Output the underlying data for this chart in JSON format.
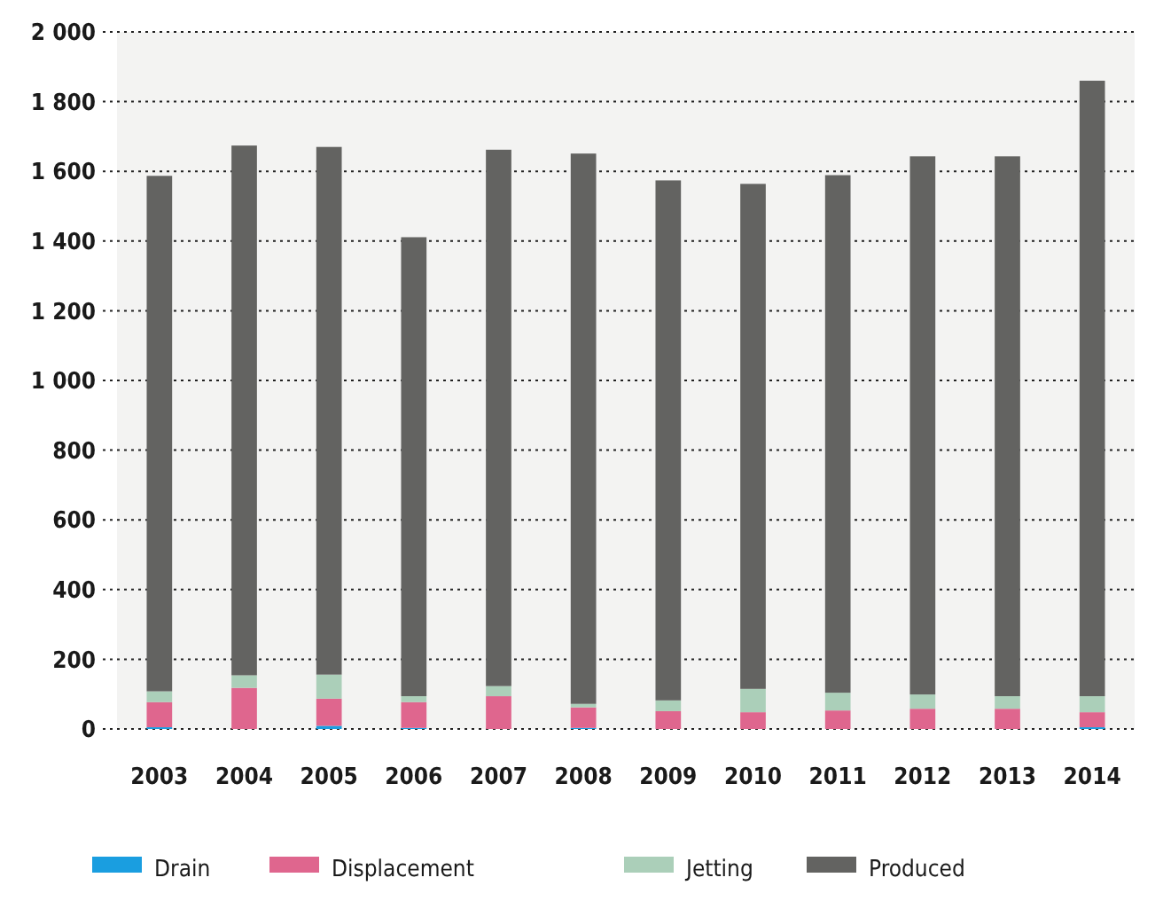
{
  "chart_data": {
    "type": "bar",
    "stacked": true,
    "categories": [
      "2003",
      "2004",
      "2005",
      "2006",
      "2007",
      "2008",
      "2009",
      "2010",
      "2011",
      "2012",
      "2013",
      "2014"
    ],
    "series": [
      {
        "name": "Drain",
        "color": "#1a9ee0",
        "values": [
          5,
          0,
          9,
          3,
          0,
          3,
          0,
          0,
          0,
          0,
          0,
          5
        ]
      },
      {
        "name": "Displacement",
        "color": "#df668e",
        "values": [
          72,
          118,
          78,
          74,
          94,
          59,
          51,
          48,
          53,
          58,
          58,
          43
        ]
      },
      {
        "name": "Jetting",
        "color": "#abcfb9",
        "values": [
          31,
          36,
          69,
          17,
          29,
          10,
          31,
          67,
          51,
          41,
          36,
          46
        ]
      },
      {
        "name": "Produced",
        "color": "#636361",
        "values": [
          1479,
          1520,
          1514,
          1317,
          1539,
          1579,
          1492,
          1449,
          1485,
          1544,
          1549,
          1766
        ]
      }
    ],
    "ylim": [
      0,
      2000
    ],
    "yticks": [
      0,
      200,
      400,
      600,
      800,
      {
        "value": 1000,
        "label": "1 000"
      },
      {
        "value": 1200,
        "label": "1 200"
      },
      {
        "value": 1400,
        "label": "1 400"
      },
      {
        "value": 1600,
        "label": "1 600"
      },
      {
        "value": 1800,
        "label": "1 800"
      },
      {
        "value": 2000,
        "label": "2 000"
      }
    ],
    "grid": "y",
    "legend": "bottom"
  }
}
